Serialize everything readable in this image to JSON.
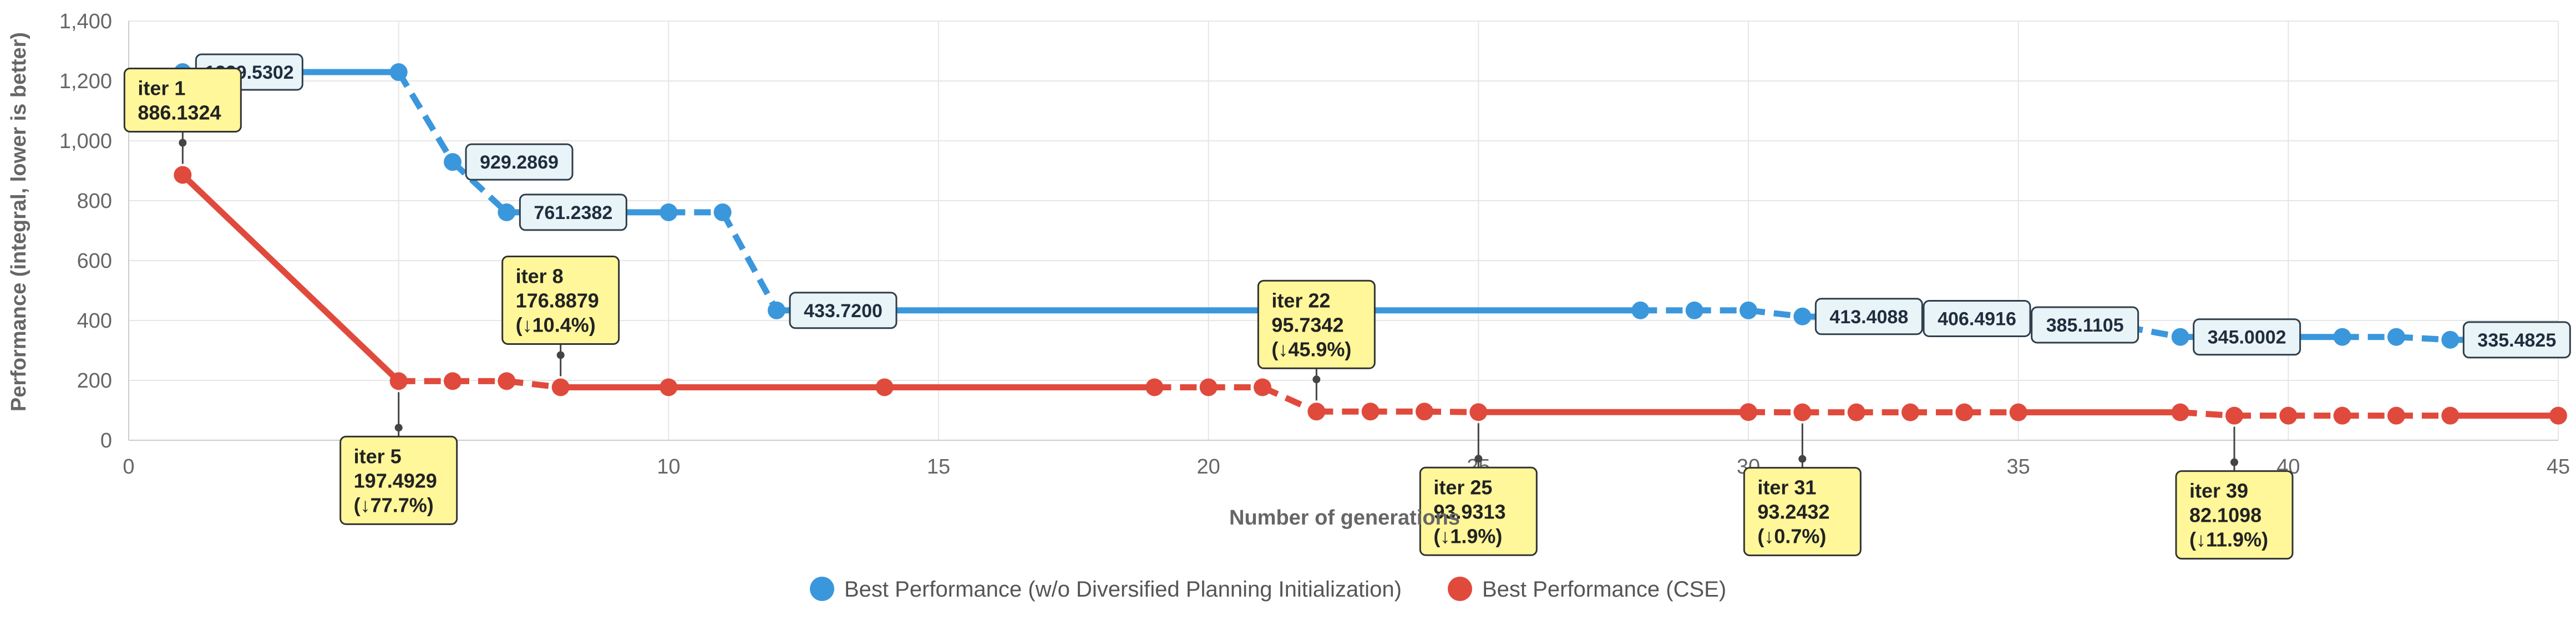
{
  "chart_data": {
    "type": "line",
    "xlabel": "Number of generations",
    "ylabel": "Performance (integral, lower is better)",
    "xlim": [
      0,
      45
    ],
    "ylim": [
      0,
      1400
    ],
    "x_ticks": [
      "0",
      "5",
      "10",
      "15",
      "20",
      "25",
      "30",
      "35",
      "40",
      "45"
    ],
    "y_ticks": [
      "0",
      "200",
      "400",
      "600",
      "800",
      "1,000",
      "1,200",
      "1,400"
    ],
    "grid": true,
    "legend_position": "bottom",
    "series": [
      {
        "name": "Best Performance (w/o Diversified Planning Initialization)",
        "color": "#3b97dc",
        "points": [
          [
            1,
            1229.5302
          ],
          [
            5,
            1229.5302
          ],
          [
            6,
            929.2869
          ],
          [
            7,
            761.2382
          ],
          [
            10,
            761.2382
          ],
          [
            11,
            761.2382
          ],
          [
            12,
            433.72
          ],
          [
            28,
            433.72
          ],
          [
            29,
            433.72
          ],
          [
            30,
            433.72
          ],
          [
            31,
            413.4088
          ],
          [
            33,
            406.4916
          ],
          [
            34,
            406.4916
          ],
          [
            35,
            385.1105
          ],
          [
            36,
            378
          ],
          [
            37,
            378
          ],
          [
            38,
            345.0002
          ],
          [
            41,
            345.0002
          ],
          [
            42,
            345.0002
          ],
          [
            43,
            335.4825
          ],
          [
            45,
            335.4825
          ]
        ],
        "value_labels": [
          {
            "x": 1,
            "text": "1229.5302"
          },
          {
            "x": 6,
            "text": "929.2869"
          },
          {
            "x": 7,
            "text": "761.2382"
          },
          {
            "x": 12,
            "text": "433.7200"
          },
          {
            "x": 31,
            "text": "413.4088"
          },
          {
            "x": 33,
            "text": "406.4916"
          },
          {
            "x": 35,
            "text": "385.1105"
          },
          {
            "x": 38,
            "text": "345.0002"
          },
          {
            "x": 43,
            "text": "335.4825"
          }
        ]
      },
      {
        "name": "Best Performance (CSE)",
        "color": "#e04a3c",
        "points": [
          [
            1,
            886.1324
          ],
          [
            5,
            197.4929
          ],
          [
            6,
            197.4929
          ],
          [
            7,
            197.4929
          ],
          [
            8,
            176.8879
          ],
          [
            10,
            176.8879
          ],
          [
            14,
            176.8879
          ],
          [
            19,
            176.8879
          ],
          [
            20,
            176.8879
          ],
          [
            21,
            176.8879
          ],
          [
            22,
            95.7342
          ],
          [
            23,
            95.7342
          ],
          [
            24,
            95.7342
          ],
          [
            25,
            93.9313
          ],
          [
            30,
            93.9313
          ],
          [
            31,
            93.2432
          ],
          [
            32,
            93.2432
          ],
          [
            33,
            93.2432
          ],
          [
            34,
            93.2432
          ],
          [
            35,
            93.2432
          ],
          [
            38,
            93.2432
          ],
          [
            39,
            82.1098
          ],
          [
            40,
            82.1098
          ],
          [
            41,
            82.1098
          ],
          [
            42,
            82.1098
          ],
          [
            43,
            82.1098
          ],
          [
            45,
            82.1098
          ]
        ],
        "annotations": [
          {
            "x": 1,
            "lines": [
              "iter 1",
              "886.1324"
            ],
            "side": "above"
          },
          {
            "x": 5,
            "lines": [
              "iter 5",
              "197.4929",
              "(↓77.7%)"
            ],
            "side": "below"
          },
          {
            "x": 8,
            "lines": [
              "iter 8",
              "176.8879",
              "(↓10.4%)"
            ],
            "side": "above"
          },
          {
            "x": 22,
            "lines": [
              "iter 22",
              "95.7342",
              "(↓45.9%)"
            ],
            "side": "above"
          },
          {
            "x": 25,
            "lines": [
              "iter 25",
              "93.9313",
              "(↓1.9%)"
            ],
            "side": "below"
          },
          {
            "x": 31,
            "lines": [
              "iter 31",
              "93.2432",
              "(↓0.7%)"
            ],
            "side": "below"
          },
          {
            "x": 39,
            "lines": [
              "iter 39",
              "82.1098",
              "(↓11.9%)"
            ],
            "side": "below"
          }
        ]
      }
    ]
  }
}
